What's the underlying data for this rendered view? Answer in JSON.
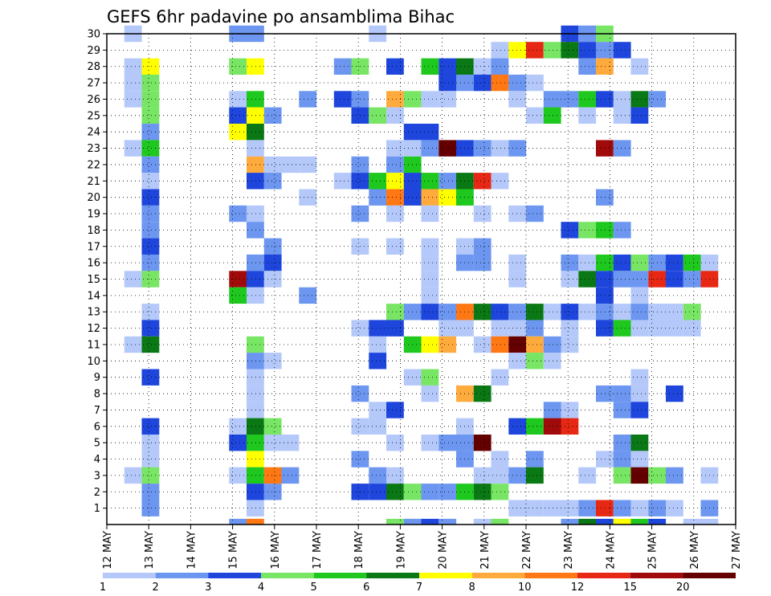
{
  "chart_data": {
    "type": "heatmap",
    "title": "GEFS 6hr padavine po ansamblima Bihac",
    "xlabel": "",
    "ylabel": "",
    "x_tick_labels": [
      "12 MAY",
      "13 MAY",
      "14 MAY",
      "15 MAY",
      "16 MAY",
      "17 MAY",
      "18 MAY",
      "19 MAY",
      "20 MAY",
      "21 MAY",
      "22 MAY",
      "23 MAY",
      "24 MAY",
      "25 MAY",
      "26 MAY",
      "27 MAY"
    ],
    "y_tick_labels": [
      "1",
      "2",
      "3",
      "4",
      "5",
      "6",
      "7",
      "8",
      "9",
      "10",
      "11",
      "12",
      "13",
      "14",
      "15",
      "16",
      "17",
      "18",
      "19",
      "20",
      "21",
      "22",
      "23",
      "24",
      "25",
      "26",
      "27",
      "28",
      "29",
      "30"
    ],
    "xlim": [
      0,
      60
    ],
    "ylim": [
      0,
      30
    ],
    "grid": true,
    "colorbar": {
      "labels": [
        "1",
        "2",
        "3",
        "4",
        "5",
        "6",
        "7",
        "8",
        "10",
        "12",
        "15",
        "20"
      ],
      "colors": [
        "#b4c8fa",
        "#6c96f0",
        "#1e46dc",
        "#78e664",
        "#1ec81e",
        "#0a7814",
        "#ffff00",
        "#ffaa3c",
        "#ff7814",
        "#e62814",
        "#a00a0a",
        "#640000"
      ]
    },
    "cells": [
      [
        1,
        30,
        0
      ],
      [
        7,
        30,
        1
      ],
      [
        8,
        30,
        1
      ],
      [
        15,
        30,
        0
      ],
      [
        26,
        30,
        2
      ],
      [
        27,
        30,
        1
      ],
      [
        28,
        30,
        3
      ],
      [
        22,
        29,
        0
      ],
      [
        23,
        29,
        6
      ],
      [
        24,
        29,
        9
      ],
      [
        25,
        29,
        3
      ],
      [
        26,
        29,
        5
      ],
      [
        27,
        29,
        2
      ],
      [
        28,
        29,
        1
      ],
      [
        29,
        29,
        2
      ],
      [
        1,
        28,
        0
      ],
      [
        2,
        28,
        6
      ],
      [
        7,
        28,
        3
      ],
      [
        8,
        28,
        6
      ],
      [
        13,
        28,
        1
      ],
      [
        14,
        28,
        3
      ],
      [
        16,
        28,
        2
      ],
      [
        18,
        28,
        4
      ],
      [
        19,
        28,
        2
      ],
      [
        20,
        28,
        5
      ],
      [
        21,
        28,
        0
      ],
      [
        22,
        28,
        1
      ],
      [
        27,
        28,
        1
      ],
      [
        28,
        28,
        7
      ],
      [
        30,
        28,
        0
      ],
      [
        1,
        27,
        0
      ],
      [
        2,
        27,
        3
      ],
      [
        19,
        27,
        2
      ],
      [
        20,
        27,
        1
      ],
      [
        21,
        27,
        2
      ],
      [
        22,
        27,
        8
      ],
      [
        23,
        27,
        1
      ],
      [
        24,
        27,
        0
      ],
      [
        1,
        26,
        0
      ],
      [
        2,
        26,
        3
      ],
      [
        7,
        26,
        0
      ],
      [
        8,
        26,
        4
      ],
      [
        11,
        26,
        1
      ],
      [
        13,
        26,
        2
      ],
      [
        14,
        26,
        1
      ],
      [
        16,
        26,
        7
      ],
      [
        17,
        26,
        3
      ],
      [
        18,
        26,
        0
      ],
      [
        19,
        26,
        0
      ],
      [
        23,
        26,
        0
      ],
      [
        25,
        26,
        1
      ],
      [
        26,
        26,
        1
      ],
      [
        27,
        26,
        4
      ],
      [
        28,
        26,
        2
      ],
      [
        29,
        26,
        0
      ],
      [
        30,
        26,
        5
      ],
      [
        31,
        26,
        1
      ],
      [
        2,
        25,
        3
      ],
      [
        7,
        25,
        2
      ],
      [
        8,
        25,
        6
      ],
      [
        9,
        25,
        1
      ],
      [
        14,
        25,
        2
      ],
      [
        15,
        25,
        3
      ],
      [
        16,
        25,
        0
      ],
      [
        24,
        25,
        0
      ],
      [
        25,
        25,
        4
      ],
      [
        27,
        25,
        0
      ],
      [
        29,
        25,
        0
      ],
      [
        30,
        25,
        2
      ],
      [
        2,
        24,
        1
      ],
      [
        7,
        24,
        6
      ],
      [
        8,
        24,
        5
      ],
      [
        17,
        24,
        2
      ],
      [
        18,
        24,
        2
      ],
      [
        1,
        23,
        0
      ],
      [
        2,
        23,
        4
      ],
      [
        8,
        23,
        0
      ],
      [
        16,
        23,
        0
      ],
      [
        17,
        23,
        0
      ],
      [
        18,
        23,
        1
      ],
      [
        19,
        23,
        11
      ],
      [
        20,
        23,
        2
      ],
      [
        21,
        23,
        1
      ],
      [
        22,
        23,
        0
      ],
      [
        23,
        23,
        1
      ],
      [
        28,
        23,
        10
      ],
      [
        29,
        23,
        1
      ],
      [
        2,
        22,
        1
      ],
      [
        8,
        22,
        7
      ],
      [
        9,
        22,
        0
      ],
      [
        10,
        22,
        0
      ],
      [
        11,
        22,
        0
      ],
      [
        14,
        22,
        1
      ],
      [
        16,
        22,
        1
      ],
      [
        17,
        22,
        4
      ],
      [
        2,
        21,
        0
      ],
      [
        8,
        21,
        2
      ],
      [
        9,
        21,
        1
      ],
      [
        13,
        21,
        0
      ],
      [
        14,
        21,
        2
      ],
      [
        15,
        21,
        4
      ],
      [
        16,
        21,
        6
      ],
      [
        17,
        21,
        2
      ],
      [
        18,
        21,
        4
      ],
      [
        19,
        21,
        1
      ],
      [
        20,
        21,
        5
      ],
      [
        21,
        21,
        9
      ],
      [
        22,
        21,
        0
      ],
      [
        2,
        20,
        2
      ],
      [
        11,
        20,
        0
      ],
      [
        15,
        20,
        1
      ],
      [
        16,
        20,
        8
      ],
      [
        17,
        20,
        2
      ],
      [
        18,
        20,
        7
      ],
      [
        19,
        20,
        6
      ],
      [
        20,
        20,
        4
      ],
      [
        28,
        20,
        1
      ],
      [
        2,
        19,
        1
      ],
      [
        7,
        19,
        1
      ],
      [
        8,
        19,
        0
      ],
      [
        14,
        19,
        1
      ],
      [
        16,
        19,
        0
      ],
      [
        18,
        19,
        0
      ],
      [
        21,
        19,
        0
      ],
      [
        23,
        19,
        0
      ],
      [
        24,
        19,
        1
      ],
      [
        2,
        18,
        1
      ],
      [
        8,
        18,
        1
      ],
      [
        26,
        18,
        2
      ],
      [
        27,
        18,
        3
      ],
      [
        28,
        18,
        4
      ],
      [
        29,
        18,
        1
      ],
      [
        2,
        17,
        2
      ],
      [
        9,
        17,
        1
      ],
      [
        14,
        17,
        0
      ],
      [
        16,
        17,
        0
      ],
      [
        18,
        17,
        0
      ],
      [
        20,
        17,
        0
      ],
      [
        21,
        17,
        1
      ],
      [
        2,
        16,
        1
      ],
      [
        8,
        16,
        1
      ],
      [
        9,
        16,
        2
      ],
      [
        18,
        16,
        0
      ],
      [
        20,
        16,
        1
      ],
      [
        21,
        16,
        1
      ],
      [
        23,
        16,
        0
      ],
      [
        26,
        16,
        1
      ],
      [
        27,
        16,
        0
      ],
      [
        28,
        16,
        4
      ],
      [
        29,
        16,
        2
      ],
      [
        30,
        16,
        3
      ],
      [
        31,
        16,
        1
      ],
      [
        32,
        16,
        2
      ],
      [
        33,
        16,
        4
      ],
      [
        34,
        16,
        0
      ],
      [
        1,
        15,
        0
      ],
      [
        2,
        15,
        3
      ],
      [
        7,
        15,
        10
      ],
      [
        8,
        15,
        2
      ],
      [
        9,
        15,
        0
      ],
      [
        18,
        15,
        0
      ],
      [
        23,
        15,
        0
      ],
      [
        26,
        15,
        0
      ],
      [
        27,
        15,
        5
      ],
      [
        28,
        15,
        2
      ],
      [
        29,
        15,
        1
      ],
      [
        30,
        15,
        1
      ],
      [
        31,
        15,
        9
      ],
      [
        32,
        15,
        2
      ],
      [
        33,
        15,
        1
      ],
      [
        34,
        15,
        9
      ],
      [
        7,
        14,
        4
      ],
      [
        8,
        14,
        0
      ],
      [
        11,
        14,
        1
      ],
      [
        18,
        14,
        0
      ],
      [
        28,
        14,
        2
      ],
      [
        30,
        14,
        0
      ],
      [
        2,
        13,
        0
      ],
      [
        16,
        13,
        3
      ],
      [
        17,
        13,
        1
      ],
      [
        18,
        13,
        2
      ],
      [
        19,
        13,
        1
      ],
      [
        20,
        13,
        8
      ],
      [
        21,
        13,
        5
      ],
      [
        22,
        13,
        2
      ],
      [
        23,
        13,
        1
      ],
      [
        24,
        13,
        5
      ],
      [
        25,
        13,
        0
      ],
      [
        26,
        13,
        2
      ],
      [
        27,
        13,
        0
      ],
      [
        28,
        13,
        1
      ],
      [
        29,
        13,
        0
      ],
      [
        30,
        13,
        1
      ],
      [
        31,
        13,
        0
      ],
      [
        32,
        13,
        0
      ],
      [
        33,
        13,
        3
      ],
      [
        2,
        12,
        2
      ],
      [
        14,
        12,
        0
      ],
      [
        15,
        12,
        2
      ],
      [
        16,
        12,
        2
      ],
      [
        19,
        12,
        0
      ],
      [
        20,
        12,
        0
      ],
      [
        22,
        12,
        0
      ],
      [
        23,
        12,
        0
      ],
      [
        24,
        12,
        1
      ],
      [
        26,
        12,
        0
      ],
      [
        28,
        12,
        2
      ],
      [
        29,
        12,
        4
      ],
      [
        30,
        12,
        0
      ],
      [
        31,
        12,
        0
      ],
      [
        32,
        12,
        0
      ],
      [
        33,
        12,
        0
      ],
      [
        1,
        11,
        0
      ],
      [
        2,
        11,
        5
      ],
      [
        8,
        11,
        3
      ],
      [
        15,
        11,
        0
      ],
      [
        17,
        11,
        4
      ],
      [
        18,
        11,
        6
      ],
      [
        19,
        11,
        7
      ],
      [
        21,
        11,
        0
      ],
      [
        22,
        11,
        8
      ],
      [
        23,
        11,
        11
      ],
      [
        24,
        11,
        7
      ],
      [
        25,
        11,
        1
      ],
      [
        26,
        11,
        0
      ],
      [
        8,
        10,
        1
      ],
      [
        9,
        10,
        0
      ],
      [
        15,
        10,
        2
      ],
      [
        23,
        10,
        0
      ],
      [
        24,
        10,
        3
      ],
      [
        25,
        10,
        0
      ],
      [
        2,
        9,
        2
      ],
      [
        8,
        9,
        0
      ],
      [
        17,
        9,
        0
      ],
      [
        18,
        9,
        3
      ],
      [
        22,
        9,
        0
      ],
      [
        30,
        9,
        0
      ],
      [
        8,
        8,
        0
      ],
      [
        14,
        8,
        1
      ],
      [
        18,
        8,
        0
      ],
      [
        20,
        8,
        7
      ],
      [
        21,
        8,
        5
      ],
      [
        28,
        8,
        1
      ],
      [
        29,
        8,
        1
      ],
      [
        30,
        8,
        0
      ],
      [
        32,
        8,
        2
      ],
      [
        8,
        7,
        0
      ],
      [
        15,
        7,
        0
      ],
      [
        16,
        7,
        2
      ],
      [
        25,
        7,
        1
      ],
      [
        26,
        7,
        0
      ],
      [
        29,
        7,
        1
      ],
      [
        30,
        7,
        2
      ],
      [
        2,
        6,
        2
      ],
      [
        7,
        6,
        0
      ],
      [
        8,
        6,
        5
      ],
      [
        9,
        6,
        3
      ],
      [
        14,
        6,
        0
      ],
      [
        15,
        6,
        0
      ],
      [
        20,
        6,
        0
      ],
      [
        23,
        6,
        2
      ],
      [
        24,
        6,
        4
      ],
      [
        25,
        6,
        10
      ],
      [
        26,
        6,
        9
      ],
      [
        2,
        5,
        0
      ],
      [
        7,
        5,
        2
      ],
      [
        8,
        5,
        4
      ],
      [
        9,
        5,
        0
      ],
      [
        10,
        5,
        0
      ],
      [
        16,
        5,
        0
      ],
      [
        18,
        5,
        0
      ],
      [
        19,
        5,
        1
      ],
      [
        20,
        5,
        1
      ],
      [
        21,
        5,
        11
      ],
      [
        29,
        5,
        1
      ],
      [
        30,
        5,
        5
      ],
      [
        2,
        4,
        0
      ],
      [
        8,
        4,
        6
      ],
      [
        14,
        4,
        1
      ],
      [
        20,
        4,
        1
      ],
      [
        22,
        4,
        0
      ],
      [
        24,
        4,
        1
      ],
      [
        28,
        4,
        0
      ],
      [
        29,
        4,
        1
      ],
      [
        30,
        4,
        0
      ],
      [
        1,
        3,
        0
      ],
      [
        2,
        3,
        3
      ],
      [
        7,
        3,
        0
      ],
      [
        8,
        3,
        4
      ],
      [
        9,
        3,
        8
      ],
      [
        10,
        3,
        1
      ],
      [
        15,
        3,
        1
      ],
      [
        16,
        3,
        0
      ],
      [
        21,
        3,
        0
      ],
      [
        22,
        3,
        0
      ],
      [
        23,
        3,
        1
      ],
      [
        24,
        3,
        5
      ],
      [
        27,
        3,
        0
      ],
      [
        29,
        3,
        3
      ],
      [
        30,
        3,
        11
      ],
      [
        31,
        3,
        3
      ],
      [
        32,
        3,
        1
      ],
      [
        34,
        3,
        0
      ],
      [
        2,
        2,
        1
      ],
      [
        8,
        2,
        2
      ],
      [
        9,
        2,
        1
      ],
      [
        14,
        2,
        2
      ],
      [
        15,
        2,
        2
      ],
      [
        16,
        2,
        5
      ],
      [
        17,
        2,
        3
      ],
      [
        18,
        2,
        1
      ],
      [
        19,
        2,
        1
      ],
      [
        20,
        2,
        4
      ],
      [
        21,
        2,
        5
      ],
      [
        22,
        2,
        3
      ],
      [
        2,
        1,
        1
      ],
      [
        8,
        1,
        0
      ],
      [
        23,
        1,
        0
      ],
      [
        24,
        1,
        0
      ],
      [
        25,
        1,
        0
      ],
      [
        26,
        1,
        0
      ],
      [
        27,
        1,
        1
      ],
      [
        28,
        1,
        9
      ],
      [
        29,
        1,
        1
      ],
      [
        30,
        1,
        0
      ],
      [
        31,
        1,
        1
      ],
      [
        32,
        1,
        0
      ],
      [
        34,
        1,
        1
      ],
      [
        7,
        0,
        1
      ],
      [
        8,
        0,
        8
      ],
      [
        16,
        0,
        3
      ],
      [
        17,
        0,
        1
      ],
      [
        18,
        0,
        2
      ],
      [
        19,
        0,
        1
      ],
      [
        21,
        0,
        0
      ],
      [
        22,
        0,
        3
      ],
      [
        26,
        0,
        1
      ],
      [
        27,
        0,
        5
      ],
      [
        28,
        0,
        2
      ],
      [
        29,
        0,
        6
      ],
      [
        30,
        0,
        4
      ],
      [
        31,
        0,
        2
      ],
      [
        33,
        0,
        0
      ],
      [
        34,
        0,
        0
      ]
    ]
  }
}
